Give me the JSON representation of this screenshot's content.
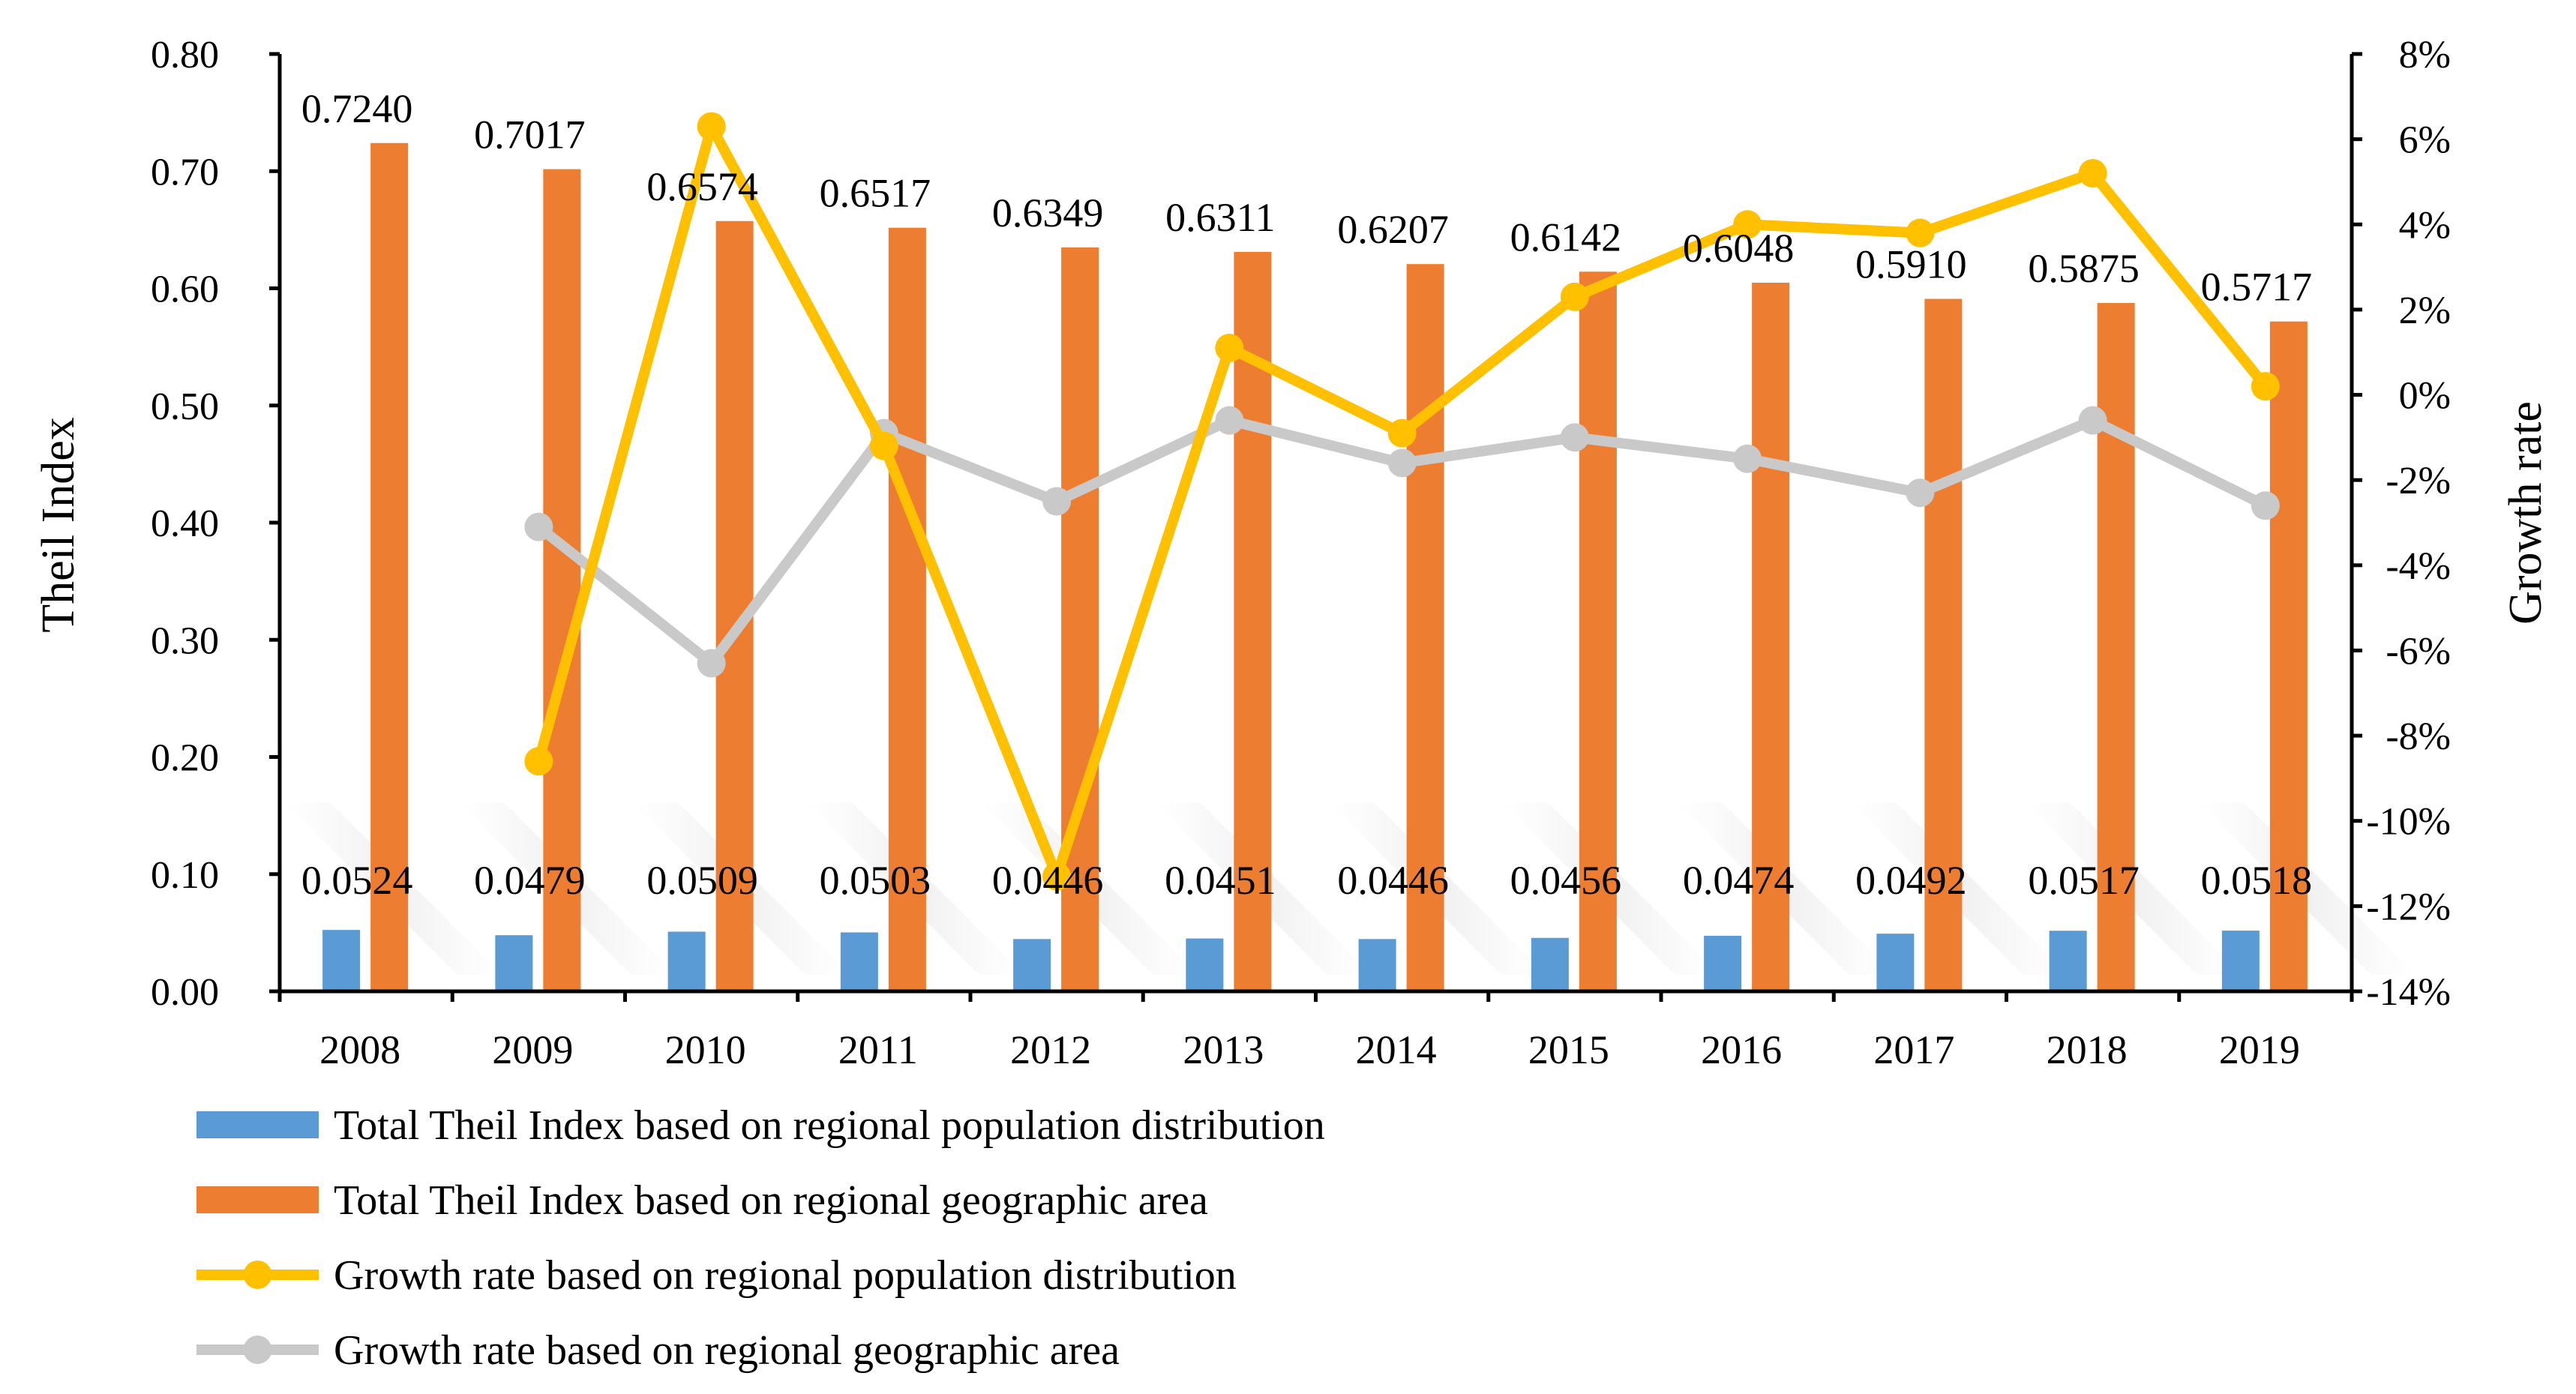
{
  "chart_data": {
    "type": "bar",
    "categories": [
      "2008",
      "2009",
      "2010",
      "2011",
      "2012",
      "2013",
      "2014",
      "2015",
      "2016",
      "2017",
      "2018",
      "2019"
    ],
    "series": [
      {
        "name": "Total Theil Index based on regional population distribution",
        "kind": "bar",
        "axis": "left",
        "color": "#5B9BD5",
        "values": [
          0.0524,
          0.0479,
          0.0509,
          0.0503,
          0.0446,
          0.0451,
          0.0446,
          0.0456,
          0.0474,
          0.0492,
          0.0517,
          0.0518
        ],
        "labels": [
          "0.0524",
          "0.0479",
          "0.0509",
          "0.0503",
          "0.0446",
          "0.0451",
          "0.0446",
          "0.0456",
          "0.0474",
          "0.0492",
          "0.0517",
          "0.0518"
        ]
      },
      {
        "name": "Total Theil Index based on  regional geographic area",
        "kind": "bar",
        "axis": "left",
        "color": "#ED7D31",
        "values": [
          0.724,
          0.7017,
          0.6574,
          0.6517,
          0.6349,
          0.6311,
          0.6207,
          0.6142,
          0.6048,
          0.591,
          0.5875,
          0.5717
        ],
        "labels": [
          "0.7240",
          "0.7017",
          "0.6574",
          "0.6517",
          "0.6349",
          "0.6311",
          "0.6207",
          "0.6142",
          "0.6048",
          "0.5910",
          "0.5875",
          "0.5717"
        ]
      },
      {
        "name": "Growth rate based on regional population distribution",
        "kind": "line",
        "axis": "right",
        "color": "#FFC000",
        "values": [
          null,
          -8.6,
          6.3,
          -1.2,
          -11.3,
          1.1,
          -0.9,
          2.3,
          4.0,
          3.8,
          5.2,
          0.2
        ]
      },
      {
        "name": "Growth rate based on regional geographic area",
        "kind": "line",
        "axis": "right",
        "color": "#C9C9C9",
        "values": [
          null,
          -3.1,
          -6.3,
          -0.9,
          -2.5,
          -0.6,
          -1.6,
          -1.0,
          -1.5,
          -2.3,
          -0.6,
          -2.6
        ]
      }
    ],
    "y_left": {
      "label": "Theil Index",
      "min": 0,
      "max": 0.8,
      "ticks": [
        "0.00",
        "0.10",
        "0.20",
        "0.30",
        "0.40",
        "0.50",
        "0.60",
        "0.70",
        "0.80"
      ]
    },
    "y_right": {
      "label": "Growth rate",
      "min": -14,
      "max": 8,
      "ticks": [
        "-14%",
        "-12%",
        "-10%",
        "-8%",
        "-6%",
        "-4%",
        "-2%",
        "0%",
        "2%",
        "4%",
        "6%",
        "8%"
      ]
    },
    "grid": false,
    "legend": "bottom"
  }
}
